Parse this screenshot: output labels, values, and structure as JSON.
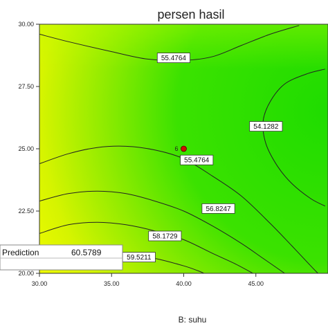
{
  "chart_data": {
    "type": "contour",
    "title": "persen hasil",
    "xlabel": "B: suhu",
    "ylabel": "",
    "xlim": [
      30,
      50
    ],
    "ylim": [
      20,
      30
    ],
    "x_ticks": [
      "30.00",
      "35.00",
      "40.00",
      "45.00"
    ],
    "y_ticks": [
      "20.00",
      "22.50",
      "25.00",
      "27.50",
      "30.00"
    ],
    "contours": [
      {
        "level": "55.4764",
        "points": [
          [
            30.0,
            29.6
          ],
          [
            32.0,
            29.3
          ],
          [
            35.0,
            28.9
          ],
          [
            37.5,
            28.6
          ],
          [
            40.0,
            28.55
          ],
          [
            42.0,
            28.7
          ],
          [
            44.0,
            29.15
          ],
          [
            46.0,
            29.6
          ],
          [
            48.0,
            29.95
          ]
        ]
      },
      {
        "level": "54.1282",
        "points": [
          [
            49.8,
            28.2
          ],
          [
            48.5,
            28.0
          ],
          [
            47.0,
            27.6
          ],
          [
            46.0,
            26.9
          ],
          [
            45.5,
            26.1
          ],
          [
            45.7,
            25.2
          ],
          [
            46.5,
            24.3
          ],
          [
            47.5,
            23.6
          ],
          [
            48.8,
            23.0
          ],
          [
            49.8,
            22.7
          ]
        ]
      },
      {
        "level": "55.4764",
        "points": [
          [
            30.0,
            24.4
          ],
          [
            32.0,
            24.8
          ],
          [
            34.0,
            25.05
          ],
          [
            36.0,
            25.1
          ],
          [
            38.0,
            24.95
          ],
          [
            40.0,
            24.6
          ],
          [
            42.0,
            23.9
          ],
          [
            44.0,
            23.1
          ],
          [
            46.0,
            22.0
          ],
          [
            47.5,
            21.1
          ],
          [
            48.8,
            20.3
          ],
          [
            49.3,
            20.0
          ]
        ]
      },
      {
        "level": "56.8247",
        "points": [
          [
            30.0,
            22.9
          ],
          [
            32.0,
            23.2
          ],
          [
            34.0,
            23.3
          ],
          [
            36.0,
            23.2
          ],
          [
            38.0,
            22.9
          ],
          [
            40.0,
            22.5
          ],
          [
            42.0,
            21.9
          ],
          [
            44.0,
            21.2
          ],
          [
            45.5,
            20.6
          ],
          [
            47.0,
            20.0
          ]
        ]
      },
      {
        "level": "58.1729",
        "points": [
          [
            30.0,
            21.6
          ],
          [
            32.0,
            21.95
          ],
          [
            34.0,
            22.05
          ],
          [
            36.0,
            21.95
          ],
          [
            38.0,
            21.7
          ],
          [
            40.0,
            21.35
          ],
          [
            42.0,
            20.8
          ],
          [
            43.5,
            20.4
          ],
          [
            44.8,
            20.0
          ]
        ]
      },
      {
        "level": "59.5211",
        "points": [
          [
            30.0,
            20.4
          ],
          [
            32.0,
            20.75
          ],
          [
            34.0,
            20.85
          ],
          [
            36.0,
            20.8
          ],
          [
            38.0,
            20.6
          ],
          [
            40.0,
            20.3
          ],
          [
            41.0,
            20.1
          ],
          [
            41.4,
            20.0
          ]
        ]
      }
    ],
    "contour_labels": [
      {
        "text": "55.4764",
        "x": 39.3,
        "y": 28.65
      },
      {
        "text": "54.1282",
        "x": 45.7,
        "y": 25.9
      },
      {
        "text": "55.4764",
        "x": 40.9,
        "y": 24.55
      },
      {
        "text": "56.8247",
        "x": 42.4,
        "y": 22.6
      },
      {
        "text": "58.1729",
        "x": 38.7,
        "y": 21.5
      },
      {
        "text": "59.5211",
        "x": 36.9,
        "y": 20.65
      }
    ],
    "design_point": {
      "x": 40.0,
      "y": 25.0,
      "label": "6",
      "color": "#cc1100"
    },
    "colors": {
      "high": "#ffff00",
      "low": "#22dd00",
      "line": "#222222"
    }
  },
  "prediction": {
    "label": "Prediction",
    "value": "60.5789"
  }
}
